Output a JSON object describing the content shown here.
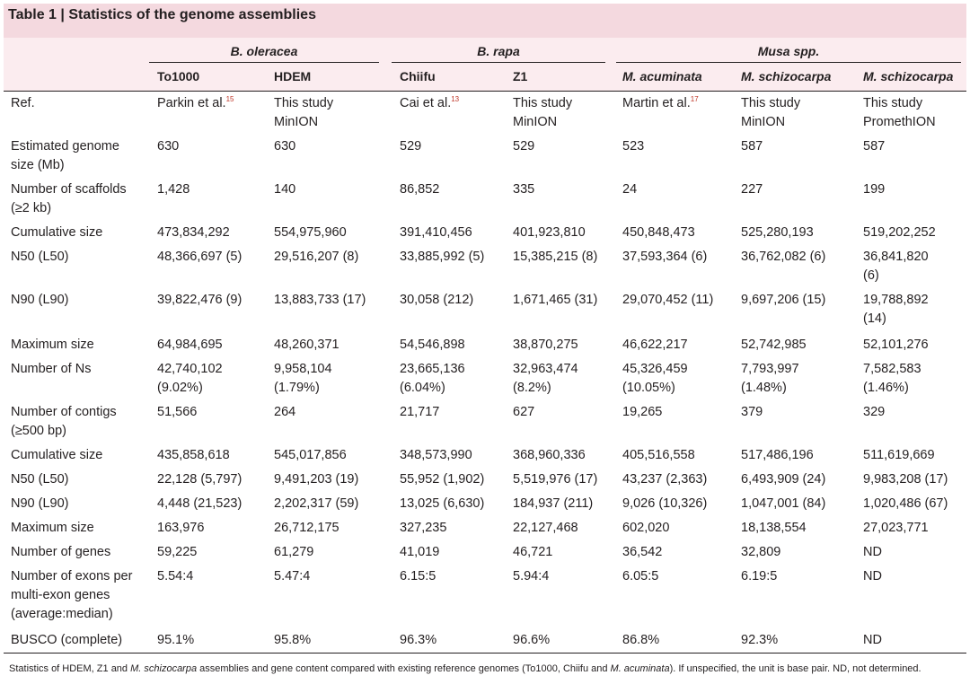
{
  "table": {
    "title": "Table 1 | Statistics of the genome assemblies",
    "groups": [
      "B. oleracea",
      "B. rapa",
      "Musa spp."
    ],
    "columns": [
      "To1000",
      "HDEM",
      "Chiifu",
      "Z1",
      "M. acuminata",
      "M. schizocarpa",
      "M. schizocarpa"
    ],
    "ref_row": {
      "label": "Ref.",
      "cells": [
        {
          "text": "Parkin et al.",
          "sup": "15"
        },
        {
          "text": "This study\nMinION",
          "sup": ""
        },
        {
          "text": "Cai et al.",
          "sup": "13"
        },
        {
          "text": "This study\nMinION",
          "sup": ""
        },
        {
          "text": "Martin et al.",
          "sup": "17"
        },
        {
          "text": "This study\nMinION",
          "sup": ""
        },
        {
          "text": "This study\nPromethION",
          "sup": ""
        }
      ]
    },
    "rows": [
      {
        "label": "Estimated genome\nsize (Mb)",
        "cells": [
          "630",
          "630",
          "529",
          "529",
          "523",
          "587",
          "587"
        ]
      },
      {
        "label": "Number of scaffolds\n(≥2 kb)",
        "cells": [
          "1,428",
          "140",
          "86,852",
          "335",
          "24",
          "227",
          "199"
        ]
      },
      {
        "label": "Cumulative size",
        "cells": [
          "473,834,292",
          "554,975,960",
          "391,410,456",
          "401,923,810",
          "450,848,473",
          "525,280,193",
          "519,202,252"
        ]
      },
      {
        "label": "N50 (L50)",
        "cells": [
          "48,366,697 (5)",
          "29,516,207 (8)",
          "33,885,992 (5)",
          "15,385,215 (8)",
          "37,593,364 (6)",
          "36,762,082 (6)",
          "36,841,820\n(6)"
        ]
      },
      {
        "label": "N90 (L90)",
        "cells": [
          "39,822,476 (9)",
          "13,883,733 (17)",
          "30,058 (212)",
          "1,671,465 (31)",
          "29,070,452 (11)",
          "9,697,206 (15)",
          "19,788,892\n(14)"
        ]
      },
      {
        "label": "Maximum size",
        "cells": [
          "64,984,695",
          "48,260,371",
          "54,546,898",
          "38,870,275",
          "46,622,217",
          "52,742,985",
          "52,101,276"
        ]
      },
      {
        "label": "Number of Ns",
        "cells": [
          "42,740,102\n(9.02%)",
          "9,958,104\n(1.79%)",
          "23,665,136\n(6.04%)",
          "32,963,474\n(8.2%)",
          "45,326,459\n(10.05%)",
          "7,793,997\n(1.48%)",
          "7,582,583\n(1.46%)"
        ]
      },
      {
        "label": "Number of contigs\n(≥500 bp)",
        "cells": [
          "51,566",
          "264",
          "21,717",
          "627",
          "19,265",
          "379",
          "329"
        ]
      },
      {
        "label": "Cumulative size",
        "cells": [
          "435,858,618",
          "545,017,856",
          "348,573,990",
          "368,960,336",
          "405,516,558",
          "517,486,196",
          "511,619,669"
        ]
      },
      {
        "label": "N50 (L50)",
        "cells": [
          "22,128 (5,797)",
          "9,491,203 (19)",
          "55,952 (1,902)",
          "5,519,976 (17)",
          "43,237 (2,363)",
          "6,493,909 (24)",
          "9,983,208 (17)"
        ]
      },
      {
        "label": "N90 (L90)",
        "cells": [
          "4,448 (21,523)",
          "2,202,317 (59)",
          "13,025 (6,630)",
          "184,937 (211)",
          "9,026 (10,326)",
          "1,047,001 (84)",
          "1,020,486 (67)"
        ]
      },
      {
        "label": "Maximum size",
        "cells": [
          "163,976",
          "26,712,175",
          "327,235",
          "22,127,468",
          "602,020",
          "18,138,554",
          "27,023,771"
        ]
      },
      {
        "label": "Number of genes",
        "cells": [
          "59,225",
          "61,279",
          "41,019",
          "46,721",
          "36,542",
          "32,809",
          "ND"
        ]
      },
      {
        "label": "Number of exons per\nmulti-exon genes\n(average:median)",
        "cells": [
          "5.54:4",
          "5.47:4",
          "6.15:5",
          "5.94:4",
          "6.05:5",
          "6.19:5",
          "ND"
        ]
      },
      {
        "label": "BUSCO (complete)",
        "cells": [
          "95.1%",
          "95.8%",
          "96.3%",
          "96.6%",
          "86.8%",
          "92.3%",
          "ND"
        ]
      }
    ],
    "footnote": {
      "part1": "Statistics of HDEM, Z1 and ",
      "italic1": "M. schizocarpa",
      "part2": " assemblies and gene content compared with existing reference genomes (To1000, Chiifu and ",
      "italic2": "M. acuminata",
      "part3": "). If unspecified, the unit is base pair. ND, not determined."
    }
  }
}
